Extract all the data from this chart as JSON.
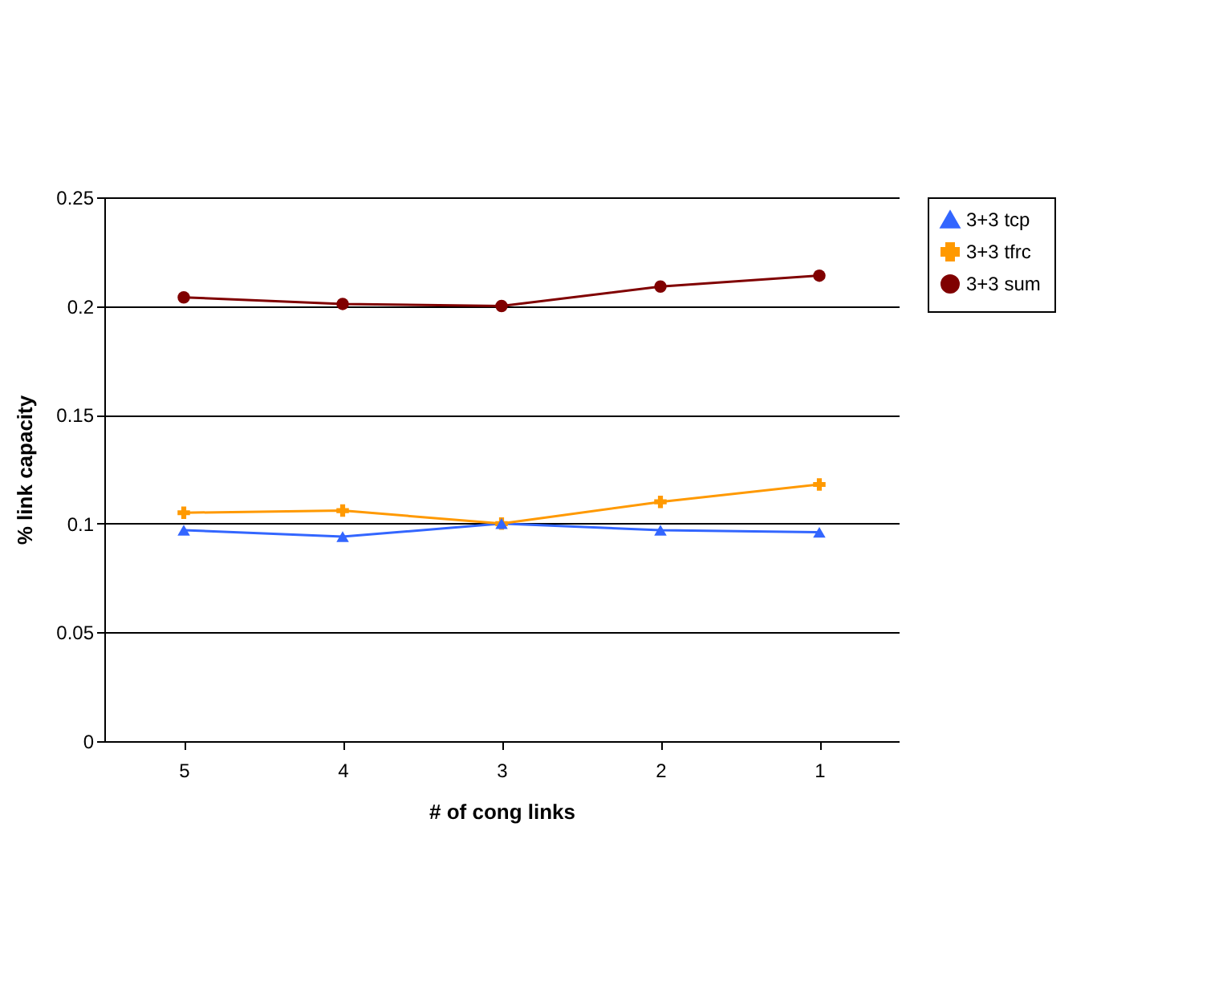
{
  "chart_data": {
    "type": "line",
    "xlabel": "# of cong links",
    "ylabel": "% link capacity",
    "categories": [
      "5",
      "4",
      "3",
      "2",
      "1"
    ],
    "ylim": [
      0,
      0.25
    ],
    "yticks": [
      0,
      0.05,
      0.1,
      0.15,
      0.2,
      0.25
    ],
    "grid": "y",
    "legend": "right",
    "line_style": "solid",
    "series": [
      {
        "name": "3+3 tcp",
        "color": "#3366ff",
        "marker": "triangle",
        "values": [
          0.097,
          0.094,
          0.1,
          0.097,
          0.096
        ]
      },
      {
        "name": "3+3 tfrc",
        "color": "#ff9900",
        "marker": "cross",
        "values": [
          0.105,
          0.106,
          0.1,
          0.11,
          0.118
        ]
      },
      {
        "name": "3+3 sum",
        "color": "#800000",
        "marker": "circle",
        "values": [
          0.204,
          0.201,
          0.2,
          0.209,
          0.214
        ]
      }
    ]
  }
}
